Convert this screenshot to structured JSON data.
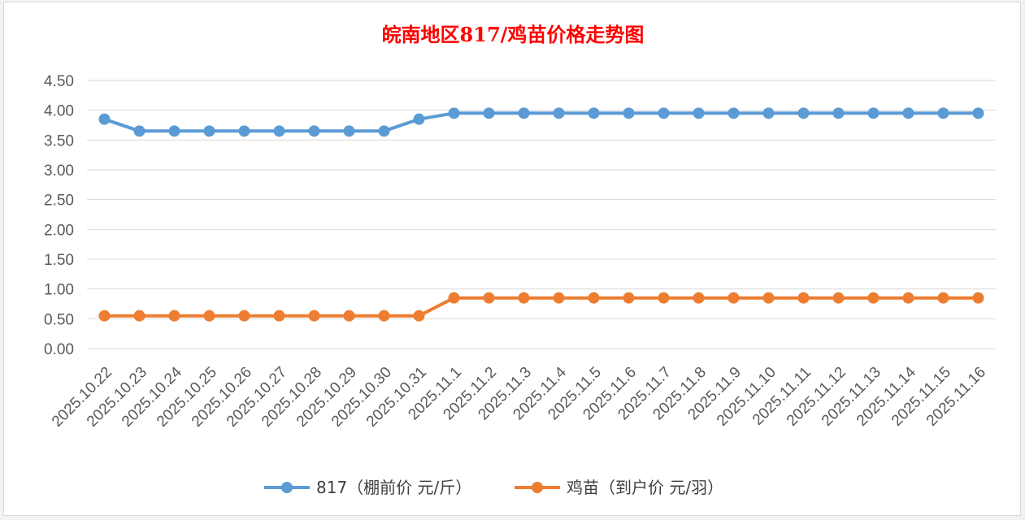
{
  "chart_data": {
    "type": "line",
    "title": "皖南地区817/鸡苗价格走势图",
    "title_color": "#ff0000",
    "categories": [
      "2025.10.22",
      "2025.10.23",
      "2025.10.24",
      "2025.10.25",
      "2025.10.26",
      "2025.10.27",
      "2025.10.28",
      "2025.10.29",
      "2025.10.30",
      "2025.10.31",
      "2025.11.1",
      "2025.11.2",
      "2025.11.3",
      "2025.11.4",
      "2025.11.5",
      "2025.11.6",
      "2025.11.7",
      "2025.11.8",
      "2025.11.9",
      "2025.11.10",
      "2025.11.11",
      "2025.11.12",
      "2025.11.13",
      "2025.11.14",
      "2025.11.15",
      "2025.11.16"
    ],
    "series": [
      {
        "name": "817（棚前价 元/斤）",
        "color": "#5b9bd5",
        "values": [
          3.85,
          3.65,
          3.65,
          3.65,
          3.65,
          3.65,
          3.65,
          3.65,
          3.65,
          3.85,
          3.95,
          3.95,
          3.95,
          3.95,
          3.95,
          3.95,
          3.95,
          3.95,
          3.95,
          3.95,
          3.95,
          3.95,
          3.95,
          3.95,
          3.95,
          3.95
        ]
      },
      {
        "name": "鸡苗（到户价 元/羽）",
        "color": "#ed7d31",
        "values": [
          0.55,
          0.55,
          0.55,
          0.55,
          0.55,
          0.55,
          0.55,
          0.55,
          0.55,
          0.55,
          0.85,
          0.85,
          0.85,
          0.85,
          0.85,
          0.85,
          0.85,
          0.85,
          0.85,
          0.85,
          0.85,
          0.85,
          0.85,
          0.85,
          0.85,
          0.85
        ]
      }
    ],
    "y_ticks": [
      "0.00",
      "0.50",
      "1.00",
      "1.50",
      "2.00",
      "2.50",
      "3.00",
      "3.50",
      "4.00",
      "4.50"
    ],
    "ylim": [
      0,
      4.5
    ],
    "grid": true,
    "legend_position": "bottom"
  }
}
